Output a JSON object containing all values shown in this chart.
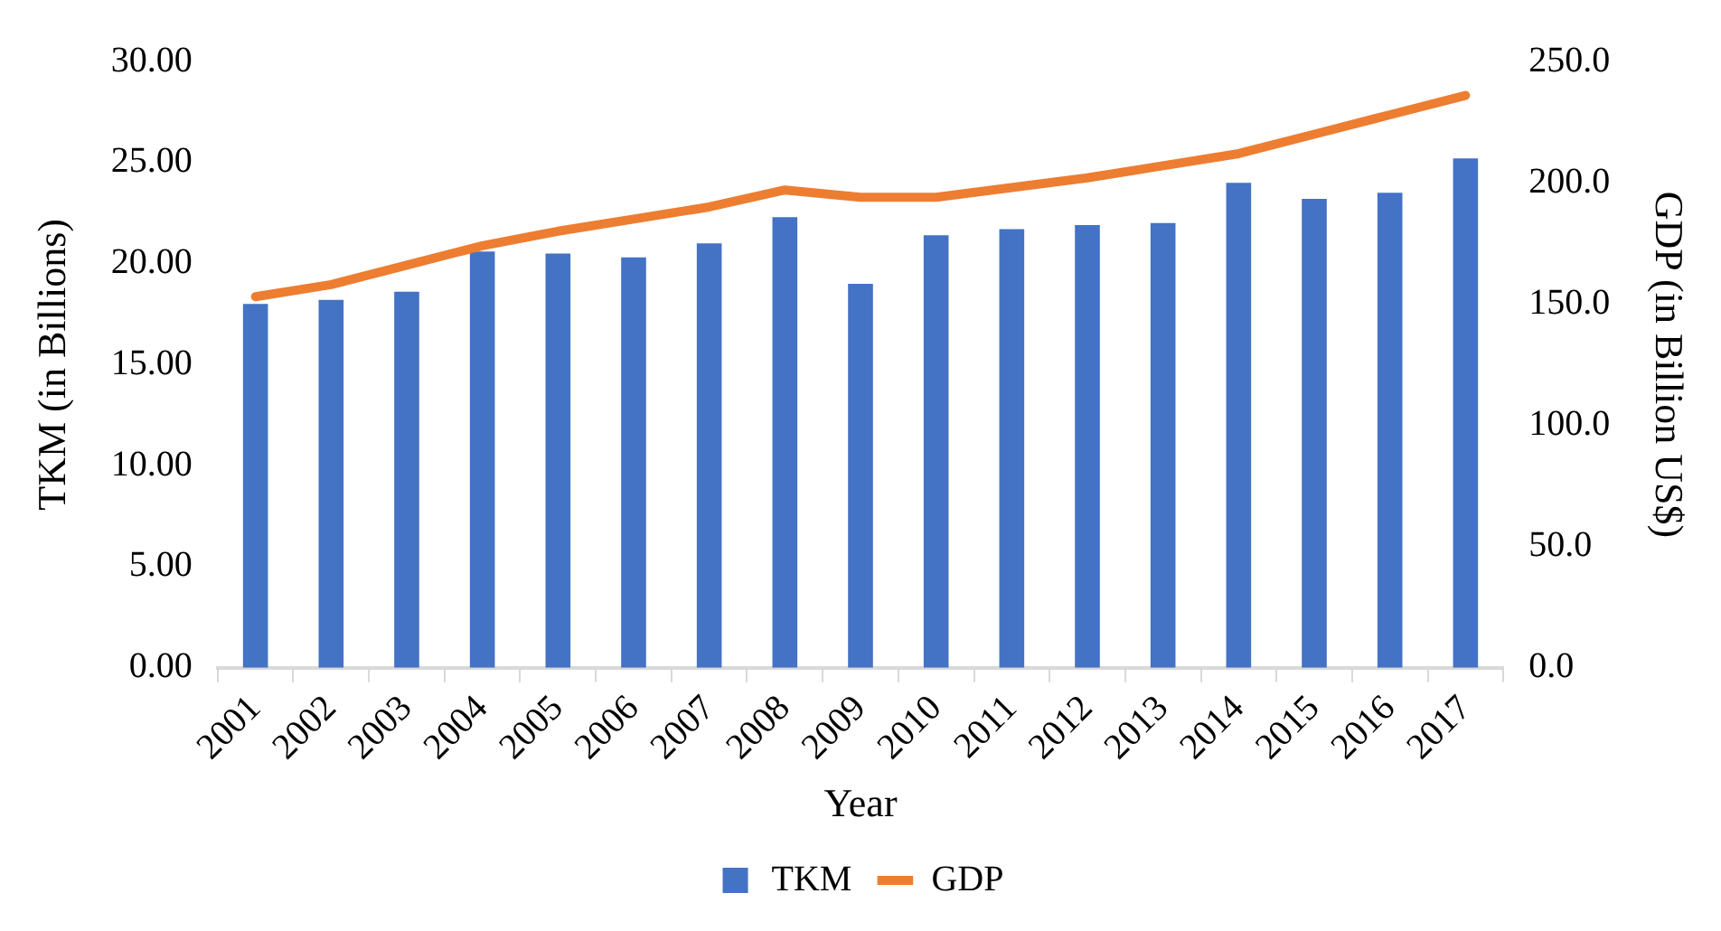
{
  "chart_data": {
    "type": "bar",
    "xlabel": "Year",
    "ylabel": "TKM (in Billions)",
    "y2label": "GDP (in Billion US$)",
    "categories": [
      "2001",
      "2002",
      "2003",
      "2004",
      "2005",
      "2006",
      "2007",
      "2008",
      "2009",
      "2010",
      "2011",
      "2012",
      "2013",
      "2014",
      "2015",
      "2016",
      "2017"
    ],
    "series": [
      {
        "name": "TKM",
        "color": "#4472c4",
        "values": [
          18.0,
          18.2,
          18.6,
          20.6,
          20.5,
          20.3,
          21.0,
          22.3,
          19.0,
          21.4,
          21.7,
          21.9,
          22.0,
          24.0,
          23.2,
          23.5,
          25.2
        ]
      },
      {
        "name": "GDP",
        "type": "line",
        "axis": "y2",
        "color": "#ed7d31",
        "values": [
          153,
          158,
          166,
          174,
          180,
          185,
          190,
          197,
          194,
          194,
          198,
          202,
          207,
          212,
          220,
          228,
          236
        ]
      }
    ],
    "ylim": [
      0,
      30
    ],
    "yticks": [
      {
        "value": 0,
        "label": "0.00"
      },
      {
        "value": 5,
        "label": "5.00"
      },
      {
        "value": 10,
        "label": "10.00"
      },
      {
        "value": 15,
        "label": "15.00"
      },
      {
        "value": 20,
        "label": "20.00"
      },
      {
        "value": 25,
        "label": "25.00"
      },
      {
        "value": 30,
        "label": "30.00"
      }
    ],
    "y2lim": [
      0,
      250
    ],
    "y2ticks": [
      {
        "value": 0,
        "label": "0.0"
      },
      {
        "value": 50,
        "label": "50.0"
      },
      {
        "value": 100,
        "label": "100.0"
      },
      {
        "value": 150,
        "label": "150.0"
      },
      {
        "value": 200,
        "label": "200.0"
      },
      {
        "value": 250,
        "label": "250.0"
      }
    ],
    "grid": false,
    "legend": "bottom",
    "marker": "none",
    "line_style": "solid"
  }
}
